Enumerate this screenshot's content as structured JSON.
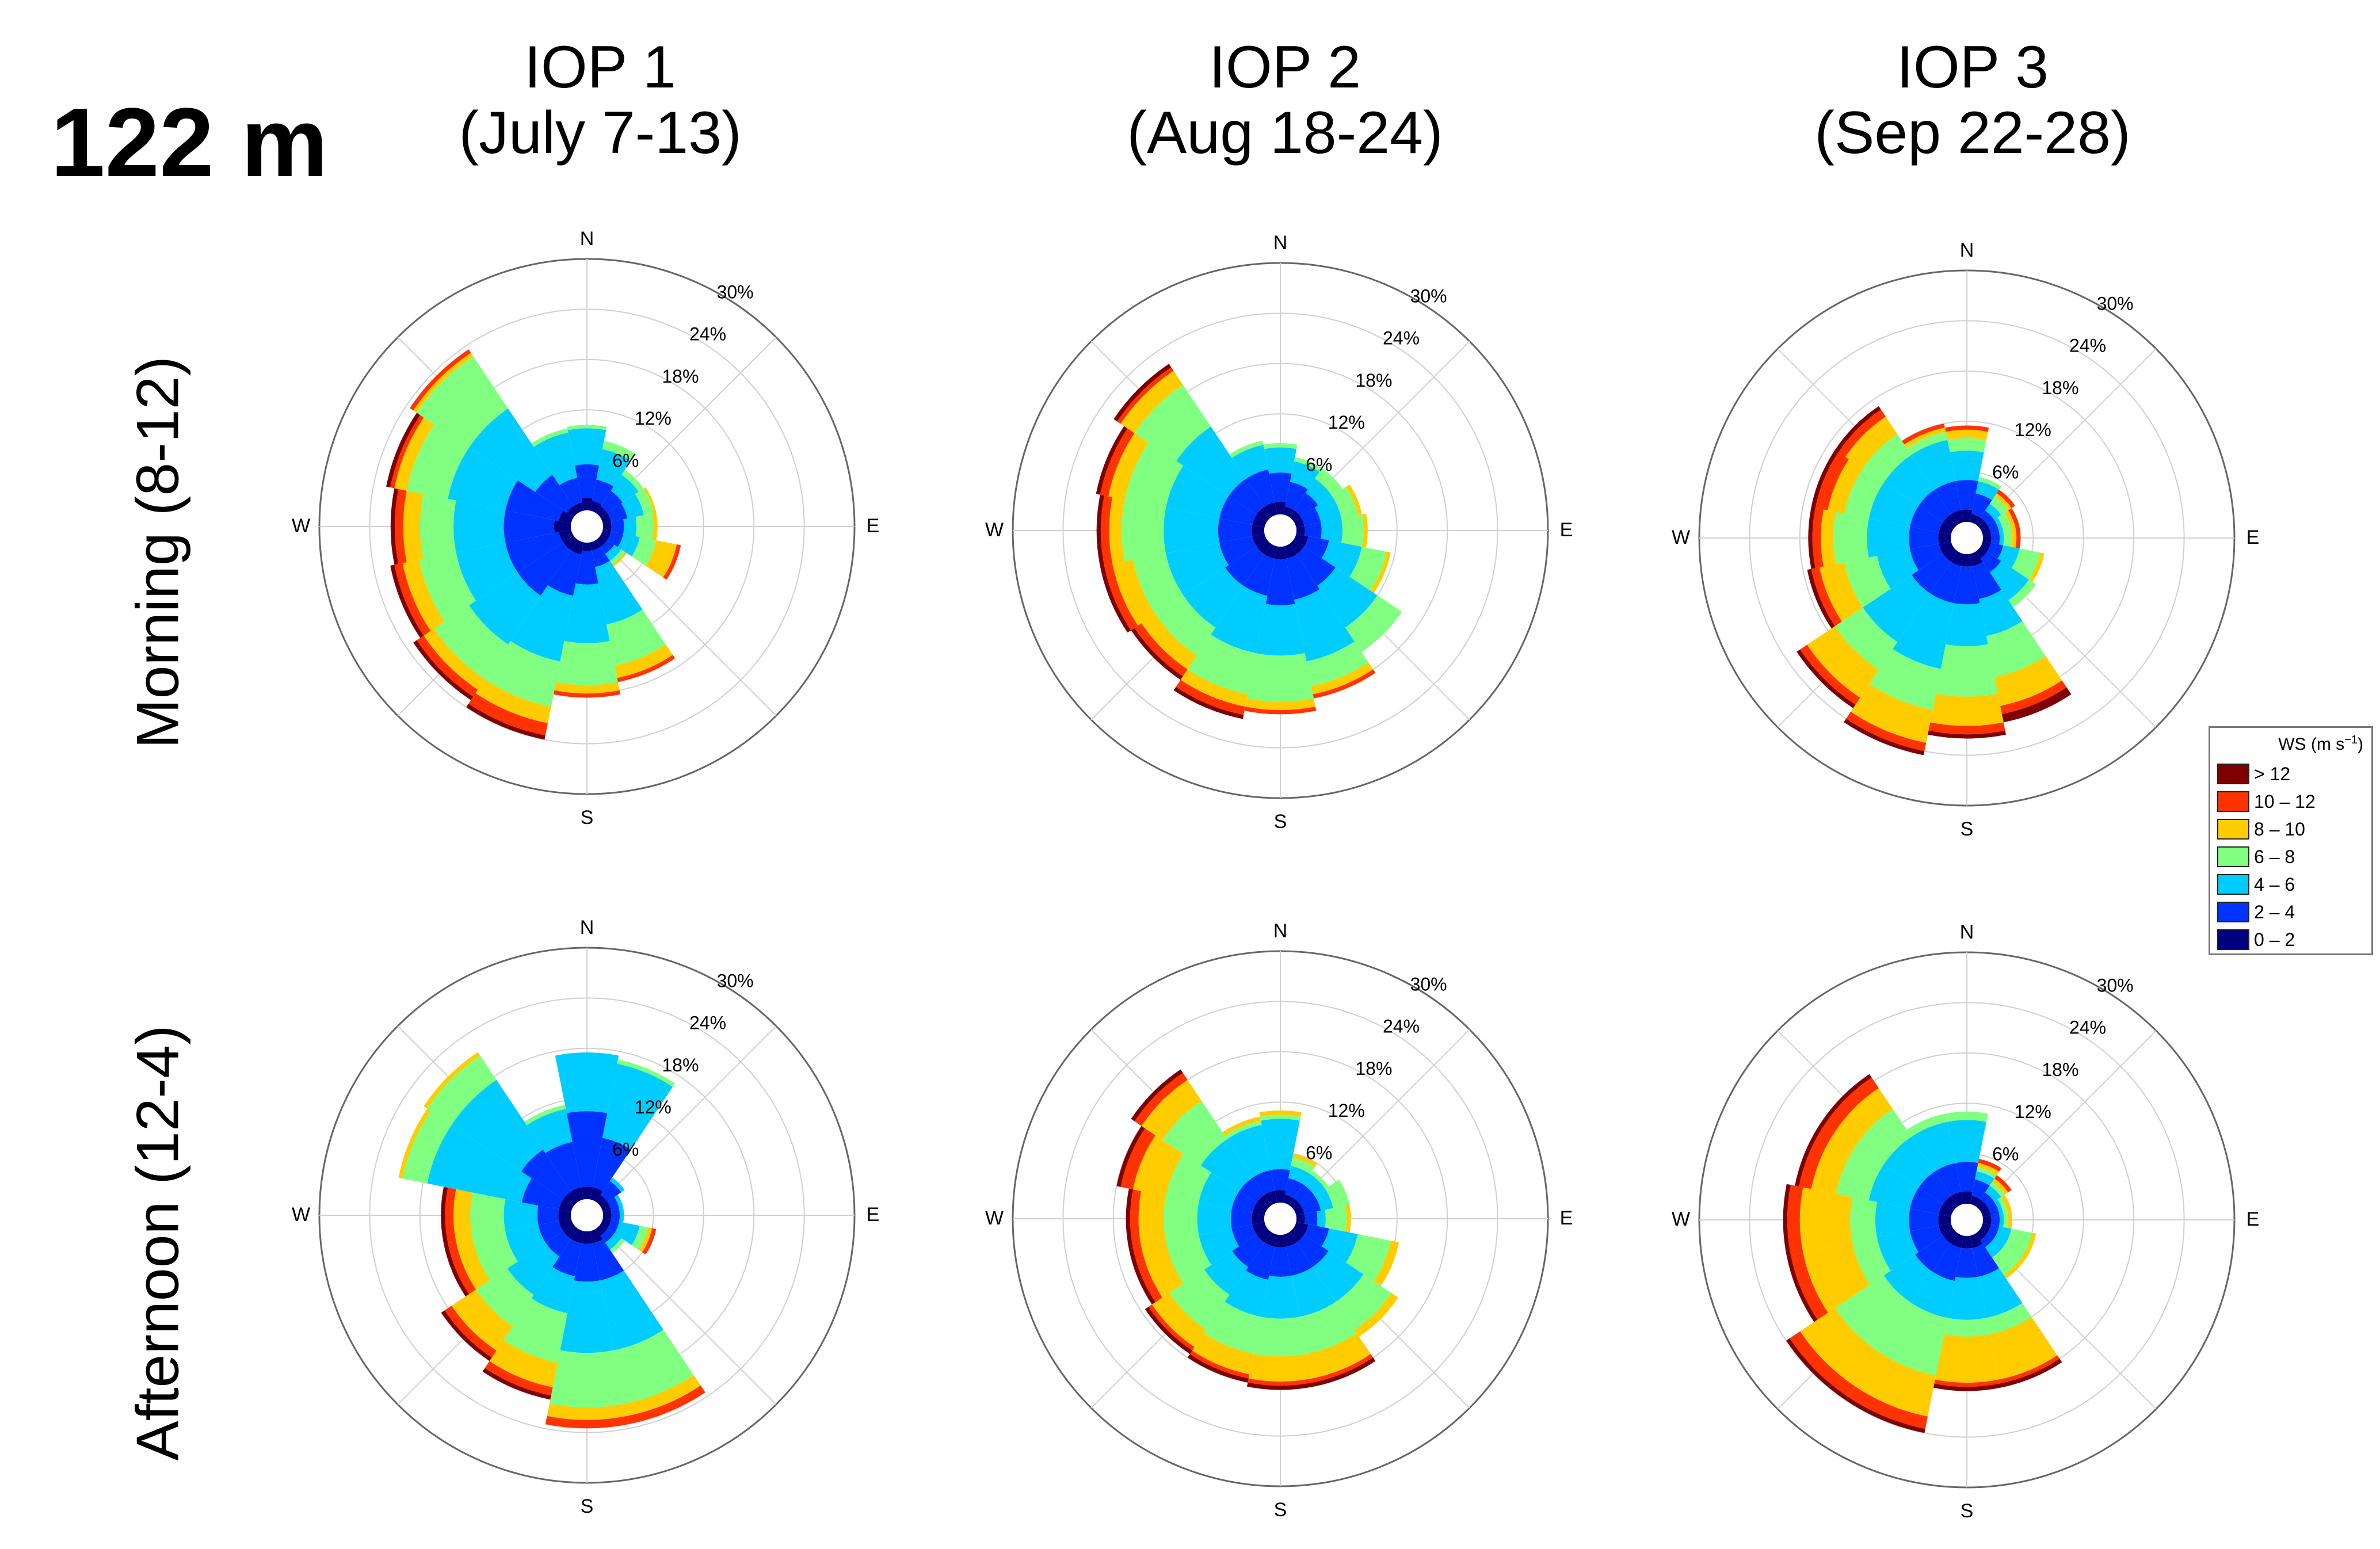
{
  "figure": {
    "height_label": "122 m",
    "columns": [
      {
        "line1": "IOP 1",
        "line2": "(July 7-13)"
      },
      {
        "line1": "IOP 2",
        "line2": "(Aug 18-24)"
      },
      {
        "line1": "IOP 3",
        "line2": "(Sep 22-28)"
      }
    ],
    "rows": [
      {
        "label": "Morning (8-12)"
      },
      {
        "label": "Afternoon (12-4)"
      }
    ]
  },
  "legend": {
    "title": "WS (m s",
    "title_sup": "−1",
    "title_close": ")",
    "items": [
      {
        "label": " > 12",
        "color": "#7f0000"
      },
      {
        "label": "10 – 12",
        "color": "#ff3300"
      },
      {
        "label": "8 – 10",
        "color": "#ffcc00"
      },
      {
        "label": "6 – 8",
        "color": "#80ff80"
      },
      {
        "label": "4 – 6",
        "color": "#00ccff"
      },
      {
        "label": "2 – 4",
        "color": "#0033ff"
      },
      {
        "label": "0 – 2",
        "color": "#000080"
      }
    ]
  },
  "chart_data": {
    "type": "wind_rose",
    "units": "% frequency",
    "rmax": 30,
    "rings": [
      6,
      12,
      18,
      24,
      30
    ],
    "ring_labels": [
      "6%",
      "12%",
      "18%",
      "24%",
      "30%"
    ],
    "direction_labels": [
      "N",
      "E",
      "S",
      "W"
    ],
    "sectors": [
      "N",
      "NNE",
      "NE",
      "ENE",
      "E",
      "ESE",
      "SE",
      "SSE",
      "S",
      "SSW",
      "SW",
      "WSW",
      "W",
      "WNW",
      "NW",
      "NNW"
    ],
    "speed_bins": [
      "0 – 2",
      "2 – 4",
      "4 – 6",
      "6 – 8",
      "8 – 10",
      "10 – 12",
      "> 12"
    ],
    "panels": [
      {
        "column": "IOP 1",
        "row": "Morning (8-12)",
        "cumulative": [
          [
            1.5,
            5.5,
            9.8,
            10.2,
            10.2,
            10.2,
            10.2
          ],
          [
            1.2,
            3.8,
            7.5,
            8.5,
            8.5,
            8.5,
            8.5
          ],
          [
            1.0,
            3.2,
            5.5,
            6.2,
            6.2,
            6.2,
            6.2
          ],
          [
            1.0,
            3.0,
            5.0,
            6.2,
            6.5,
            6.5,
            6.5
          ],
          [
            1.0,
            2.5,
            4.0,
            6.0,
            6.5,
            6.5,
            6.5
          ],
          [
            1.0,
            2.5,
            4.5,
            6.5,
            9.0,
            9.5,
            9.5
          ],
          [
            1.0,
            2.0,
            3.0,
            3.5,
            3.8,
            3.8,
            3.8
          ],
          [
            1.0,
            3.0,
            10.0,
            15.0,
            16.5,
            17.0,
            17.0
          ],
          [
            1.0,
            5.0,
            12.0,
            17.0,
            18.0,
            18.5,
            18.5
          ],
          [
            1.5,
            6.5,
            14.5,
            20.0,
            22.0,
            23.5,
            24.0
          ],
          [
            1.5,
            8.0,
            15.0,
            20.0,
            21.5,
            22.5,
            23.0
          ],
          [
            1.5,
            8.0,
            14.0,
            18.5,
            20.5,
            21.5,
            22.0
          ],
          [
            2.0,
            8.0,
            14.0,
            18.0,
            20.0,
            21.0,
            21.5
          ],
          [
            1.5,
            8.0,
            15.0,
            20.0,
            21.5,
            22.0,
            22.5
          ],
          [
            1.0,
            5.5,
            15.0,
            22.5,
            23.0,
            23.5,
            23.5
          ],
          [
            1.0,
            4.0,
            9.5,
            10.0,
            10.0,
            10.0,
            10.0
          ]
        ]
      },
      {
        "column": "IOP 2",
        "row": "Morning (8-12)",
        "cumulative": [
          [
            1.5,
            5.0,
            8.0,
            8.5,
            8.5,
            8.5,
            8.5
          ],
          [
            1.0,
            4.0,
            6.5,
            7.0,
            7.0,
            7.0,
            7.0
          ],
          [
            1.0,
            3.5,
            5.5,
            7.0,
            7.0,
            7.0,
            7.0
          ],
          [
            1.0,
            3.0,
            5.5,
            7.5,
            8.0,
            8.0,
            8.0
          ],
          [
            1.0,
            3.0,
            5.5,
            8.0,
            8.5,
            8.5,
            8.5
          ],
          [
            1.5,
            4.0,
            8.0,
            11.0,
            11.5,
            11.5,
            11.5
          ],
          [
            1.5,
            6.0,
            12.0,
            15.5,
            15.5,
            15.5,
            15.5
          ],
          [
            1.5,
            6.5,
            14.0,
            17.0,
            18.0,
            18.5,
            18.5
          ],
          [
            1.5,
            7.0,
            13.0,
            18.5,
            19.5,
            20.0,
            20.0
          ],
          [
            1.5,
            6.0,
            13.0,
            18.0,
            19.5,
            20.5,
            21.0
          ],
          [
            1.5,
            6.0,
            12.0,
            16.0,
            18.0,
            19.0,
            19.5
          ],
          [
            1.5,
            5.5,
            12.0,
            16.0,
            18.5,
            19.5,
            20.0
          ],
          [
            1.5,
            5.5,
            12.0,
            17.0,
            18.5,
            19.5,
            20.0
          ],
          [
            1.5,
            5.5,
            12.0,
            17.0,
            19.0,
            20.0,
            20.5
          ],
          [
            1.5,
            5.5,
            13.0,
            19.0,
            21.0,
            21.5,
            22.0
          ],
          [
            1.5,
            5.5,
            8.5,
            9.0,
            9.0,
            9.0,
            9.0
          ]
        ]
      },
      {
        "column": "IOP 3",
        "row": "Morning (8-12)",
        "cumulative": [
          [
            1.5,
            5.0,
            8.5,
            10.0,
            11.0,
            11.5,
            11.5
          ],
          [
            1.0,
            3.5,
            5.0,
            5.5,
            5.5,
            5.5,
            5.5
          ],
          [
            1.0,
            2.0,
            3.0,
            4.0,
            4.5,
            5.0,
            5.0
          ],
          [
            1.0,
            2.0,
            2.5,
            3.5,
            4.0,
            4.5,
            4.5
          ],
          [
            1.0,
            2.0,
            2.5,
            3.5,
            4.0,
            4.5,
            4.5
          ],
          [
            1.0,
            2.5,
            4.5,
            7.0,
            7.5,
            7.5,
            7.5
          ],
          [
            1.0,
            3.0,
            7.0,
            8.0,
            8.0,
            8.0,
            8.0
          ],
          [
            1.5,
            5.5,
            10.0,
            15.0,
            18.5,
            19.5,
            20.5
          ],
          [
            1.5,
            6.0,
            11.0,
            17.0,
            20.5,
            21.5,
            22.0
          ],
          [
            1.5,
            6.0,
            14.0,
            19.0,
            23.0,
            24.0,
            24.5
          ],
          [
            1.5,
            6.0,
            13.0,
            17.0,
            21.0,
            22.0,
            22.5
          ],
          [
            1.5,
            5.0,
            9.0,
            13.0,
            16.0,
            17.0,
            17.5
          ],
          [
            1.5,
            5.0,
            10.0,
            14.0,
            15.5,
            16.5,
            17.0
          ],
          [
            1.5,
            5.0,
            10.0,
            13.0,
            15.0,
            16.5,
            17.0
          ],
          [
            1.5,
            5.0,
            10.0,
            13.0,
            15.5,
            16.5,
            17.0
          ],
          [
            1.5,
            5.0,
            10.0,
            11.0,
            11.5,
            12.0,
            12.0
          ]
        ]
      },
      {
        "column": "IOP 1",
        "row": "Afternoon (12-4)",
        "cumulative": [
          [
            1.5,
            10.5,
            17.5,
            17.5,
            17.5,
            17.5,
            17.5
          ],
          [
            1.5,
            7.5,
            16.5,
            17.0,
            17.0,
            17.0,
            17.0
          ],
          [
            1.0,
            3.0,
            3.5,
            3.5,
            3.5,
            3.5,
            3.5
          ],
          [
            1.0,
            2.0,
            2.5,
            2.5,
            2.5,
            2.5,
            2.5
          ],
          [
            1.0,
            2.0,
            2.5,
            2.5,
            2.5,
            2.5,
            2.5
          ],
          [
            1.0,
            2.0,
            4.5,
            5.5,
            6.0,
            6.5,
            6.5
          ],
          [
            1.0,
            2.0,
            3.0,
            3.5,
            3.5,
            3.5,
            3.5
          ],
          [
            1.5,
            6.0,
            14.5,
            21.0,
            22.5,
            23.5,
            23.5
          ],
          [
            1.5,
            6.0,
            14.5,
            21.0,
            22.5,
            23.5,
            23.5
          ],
          [
            1.5,
            5.5,
            10.0,
            16.0,
            19.0,
            20.0,
            20.5
          ],
          [
            1.5,
            4.0,
            9.5,
            14.0,
            17.5,
            18.5,
            19.0
          ],
          [
            1.5,
            4.0,
            8.0,
            12.0,
            14.0,
            15.0,
            15.5
          ],
          [
            1.5,
            4.0,
            8.0,
            12.0,
            14.0,
            15.0,
            15.5
          ],
          [
            1.5,
            6.0,
            17.5,
            20.5,
            21.0,
            21.0,
            21.0
          ],
          [
            1.5,
            7.5,
            17.5,
            21.0,
            21.5,
            21.5,
            21.5
          ],
          [
            1.5,
            7.0,
            11.0,
            11.5,
            11.5,
            11.5,
            11.5
          ]
        ]
      },
      {
        "column": "IOP 2",
        "row": "Afternoon (12-4)",
        "cumulative": [
          [
            1.5,
            4.0,
            10.0,
            10.5,
            11.0,
            11.0,
            11.0
          ],
          [
            1.0,
            3.0,
            4.5,
            5.5,
            6.0,
            6.0,
            6.0
          ],
          [
            1.0,
            3.0,
            4.5,
            5.0,
            5.0,
            5.0,
            5.0
          ],
          [
            1.0,
            3.0,
            4.5,
            6.5,
            6.5,
            6.5,
            6.5
          ],
          [
            1.0,
            2.5,
            3.5,
            6.0,
            6.5,
            6.5,
            6.5
          ],
          [
            1.5,
            4.0,
            7.5,
            11.5,
            12.5,
            12.5,
            12.5
          ],
          [
            1.5,
            5.0,
            10.0,
            14.0,
            15.0,
            15.0,
            15.0
          ],
          [
            1.5,
            5.0,
            10.0,
            14.5,
            17.5,
            18.0,
            18.5
          ],
          [
            1.5,
            5.0,
            10.0,
            14.5,
            17.5,
            18.0,
            18.5
          ],
          [
            1.5,
            5.5,
            10.0,
            14.5,
            17.0,
            17.5,
            18.0
          ],
          [
            1.5,
            5.0,
            9.0,
            14.0,
            16.5,
            17.0,
            17.5
          ],
          [
            1.5,
            4.0,
            8.0,
            12.0,
            15.0,
            16.0,
            16.5
          ],
          [
            1.5,
            4.0,
            8.0,
            12.0,
            15.0,
            16.0,
            16.5
          ],
          [
            1.5,
            4.0,
            8.0,
            12.0,
            16.0,
            17.5,
            18.0
          ],
          [
            1.5,
            4.0,
            9.5,
            15.0,
            18.0,
            19.0,
            19.5
          ],
          [
            1.5,
            4.0,
            9.5,
            10.0,
            10.5,
            10.5,
            10.5
          ]
        ]
      },
      {
        "column": "IOP 3",
        "row": "Afternoon (12-4)",
        "cumulative": [
          [
            1.5,
            5.0,
            10.0,
            11.0,
            11.0,
            11.0,
            11.0
          ],
          [
            1.0,
            3.0,
            4.0,
            4.5,
            5.0,
            5.5,
            5.5
          ],
          [
            1.0,
            2.0,
            3.0,
            3.5,
            4.0,
            4.5,
            4.5
          ],
          [
            1.0,
            2.0,
            2.5,
            3.0,
            3.5,
            3.5,
            3.5
          ],
          [
            1.0,
            2.0,
            2.5,
            3.0,
            3.5,
            3.5,
            3.5
          ],
          [
            1.0,
            2.0,
            3.5,
            6.0,
            6.5,
            6.5,
            6.5
          ],
          [
            1.0,
            2.0,
            3.5,
            6.0,
            6.5,
            6.5,
            6.5
          ],
          [
            1.5,
            5.0,
            10.0,
            12.0,
            17.5,
            18.0,
            18.5
          ],
          [
            1.5,
            5.0,
            10.0,
            12.0,
            17.5,
            18.0,
            18.5
          ],
          [
            1.5,
            5.5,
            10.0,
            17.0,
            22.0,
            23.5,
            24.0
          ],
          [
            1.5,
            5.5,
            10.0,
            17.0,
            22.0,
            23.5,
            24.0
          ],
          [
            1.5,
            5.0,
            9.0,
            12.0,
            18.0,
            19.5,
            20.0
          ],
          [
            1.5,
            5.0,
            9.0,
            12.0,
            18.0,
            19.5,
            20.0
          ],
          [
            1.5,
            5.0,
            10.0,
            14.0,
            17.0,
            18.5,
            19.0
          ],
          [
            1.5,
            5.0,
            10.0,
            14.0,
            17.0,
            18.5,
            19.0
          ],
          [
            1.5,
            5.0,
            10.0,
            11.0,
            11.0,
            11.0,
            11.0
          ]
        ]
      }
    ]
  }
}
